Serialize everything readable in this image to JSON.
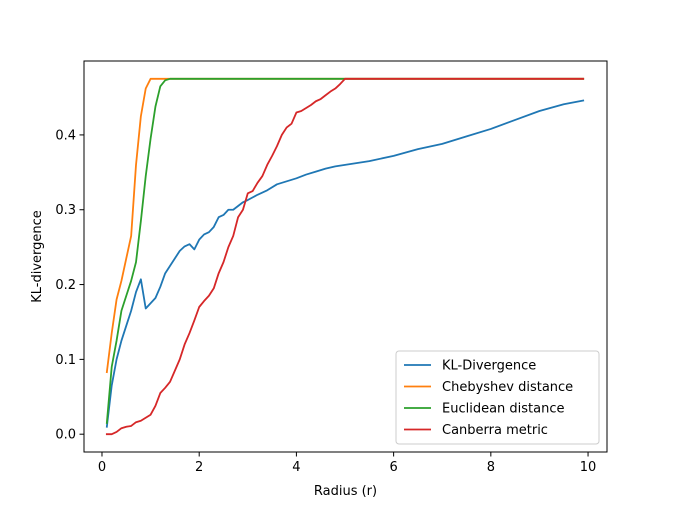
{
  "chart_data": {
    "type": "line",
    "xlabel": "Radius (r)",
    "ylabel": "KL-divergence",
    "xlim": [
      -0.37,
      10.39
    ],
    "ylim": [
      -0.0238,
      0.4988
    ],
    "xticks": [
      0,
      2,
      4,
      6,
      8,
      10
    ],
    "yticks": [
      0.0,
      0.1,
      0.2,
      0.3,
      0.4
    ],
    "xtick_labels": [
      "0",
      "2",
      "4",
      "6",
      "8",
      "10"
    ],
    "ytick_labels": [
      "0.0",
      "0.1",
      "0.2",
      "0.3",
      "0.4"
    ],
    "grid": false,
    "legend_position": "lower-right",
    "series": [
      {
        "name": "KL-Divergence",
        "color": "#1f77b4",
        "x": [
          0.1,
          0.2,
          0.3,
          0.4,
          0.5,
          0.6,
          0.7,
          0.8,
          0.9,
          1.0,
          1.1,
          1.2,
          1.3,
          1.4,
          1.5,
          1.6,
          1.7,
          1.8,
          1.9,
          2.0,
          2.1,
          2.2,
          2.3,
          2.4,
          2.5,
          2.6,
          2.7,
          2.8,
          2.9,
          3.0,
          3.2,
          3.4,
          3.6,
          3.8,
          4.0,
          4.2,
          4.4,
          4.6,
          4.8,
          5.0,
          5.5,
          6.0,
          6.5,
          7.0,
          7.5,
          8.0,
          8.5,
          9.0,
          9.5,
          9.9
        ],
        "values": [
          0.01,
          0.065,
          0.1,
          0.125,
          0.145,
          0.165,
          0.19,
          0.207,
          0.168,
          0.175,
          0.182,
          0.197,
          0.215,
          0.225,
          0.235,
          0.245,
          0.251,
          0.254,
          0.247,
          0.26,
          0.267,
          0.27,
          0.277,
          0.29,
          0.293,
          0.3,
          0.3,
          0.305,
          0.31,
          0.313,
          0.32,
          0.326,
          0.334,
          0.338,
          0.342,
          0.347,
          0.351,
          0.355,
          0.358,
          0.36,
          0.365,
          0.372,
          0.381,
          0.388,
          0.398,
          0.408,
          0.42,
          0.432,
          0.441,
          0.446
        ]
      },
      {
        "name": "Chebyshev distance",
        "color": "#ff7f0e",
        "x": [
          0.1,
          0.2,
          0.3,
          0.4,
          0.5,
          0.6,
          0.7,
          0.8,
          0.9,
          1.0,
          1.2,
          1.5,
          2.0,
          3.0,
          4.0,
          5.0,
          6.0,
          7.0,
          8.0,
          9.0,
          9.9
        ],
        "values": [
          0.083,
          0.135,
          0.18,
          0.205,
          0.235,
          0.265,
          0.36,
          0.425,
          0.462,
          0.475,
          0.475,
          0.475,
          0.475,
          0.475,
          0.475,
          0.475,
          0.475,
          0.475,
          0.475,
          0.475,
          0.475
        ]
      },
      {
        "name": "Euclidean distance",
        "color": "#2ca02c",
        "x": [
          0.1,
          0.2,
          0.3,
          0.4,
          0.5,
          0.6,
          0.7,
          0.8,
          0.9,
          1.0,
          1.1,
          1.2,
          1.3,
          1.4,
          1.6,
          2.0,
          3.0,
          4.0,
          5.0,
          6.0,
          7.0,
          8.0,
          9.0,
          9.9
        ],
        "values": [
          0.015,
          0.09,
          0.125,
          0.165,
          0.185,
          0.205,
          0.23,
          0.285,
          0.345,
          0.395,
          0.438,
          0.465,
          0.473,
          0.475,
          0.475,
          0.475,
          0.475,
          0.475,
          0.475,
          0.475,
          0.475,
          0.475,
          0.475,
          0.475
        ]
      },
      {
        "name": "Canberra metric",
        "color": "#d62728",
        "x": [
          0.1,
          0.2,
          0.3,
          0.4,
          0.5,
          0.6,
          0.7,
          0.8,
          0.9,
          1.0,
          1.1,
          1.2,
          1.3,
          1.4,
          1.5,
          1.6,
          1.7,
          1.8,
          1.9,
          2.0,
          2.1,
          2.2,
          2.3,
          2.4,
          2.5,
          2.6,
          2.7,
          2.8,
          2.9,
          3.0,
          3.1,
          3.2,
          3.3,
          3.4,
          3.5,
          3.6,
          3.7,
          3.8,
          3.9,
          4.0,
          4.1,
          4.2,
          4.3,
          4.4,
          4.5,
          4.6,
          4.7,
          4.8,
          4.9,
          5.0,
          5.5,
          6.0,
          7.0,
          8.0,
          9.0,
          9.9
        ],
        "values": [
          0.0,
          0.0,
          0.003,
          0.008,
          0.01,
          0.011,
          0.016,
          0.018,
          0.022,
          0.026,
          0.038,
          0.055,
          0.062,
          0.07,
          0.085,
          0.1,
          0.12,
          0.135,
          0.152,
          0.17,
          0.178,
          0.185,
          0.195,
          0.215,
          0.23,
          0.25,
          0.265,
          0.29,
          0.3,
          0.322,
          0.325,
          0.336,
          0.345,
          0.36,
          0.372,
          0.385,
          0.4,
          0.41,
          0.415,
          0.43,
          0.432,
          0.436,
          0.44,
          0.445,
          0.448,
          0.453,
          0.458,
          0.462,
          0.468,
          0.475,
          0.475,
          0.475,
          0.475,
          0.475,
          0.475,
          0.475
        ]
      }
    ]
  }
}
